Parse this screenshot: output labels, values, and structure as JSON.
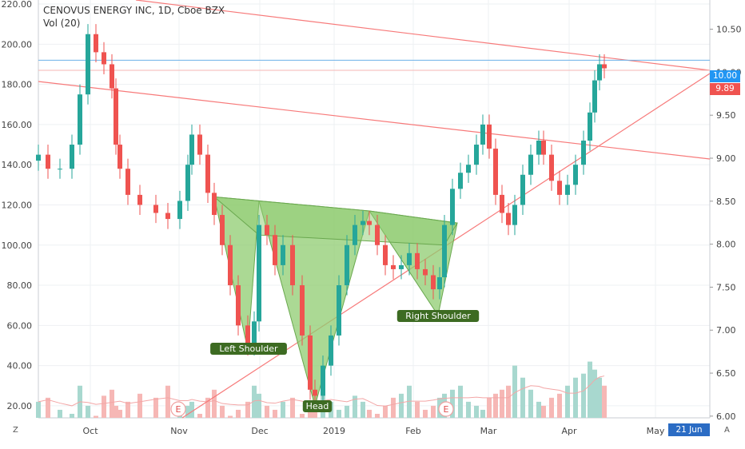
{
  "header": {
    "title": "CENOVUS ENERGY INC, 1D, Cboe BZX",
    "volume_label": "Vol (20)"
  },
  "corner": {
    "left": "Z",
    "right": "A"
  },
  "date_tag": "21 Jun '19",
  "price_tags": {
    "last": "10.00",
    "prev": "9.89"
  },
  "colors": {
    "up": "#26a69a",
    "down": "#ef5350",
    "trend": "#f77a7a",
    "hline": "#6cb0e8",
    "pattern": "#8fcc70",
    "label_bg": "#3d6b22"
  },
  "pattern_labels": {
    "left_shoulder": "Left Shoulder",
    "head": "Head",
    "right_shoulder": "Right Shoulder"
  },
  "event_markers": [
    "E",
    "E"
  ],
  "chart_data": {
    "type": "candlestick",
    "title": "CENOVUS ENERGY INC, 1D, Cboe BZX",
    "x_ticks": [
      "Oct",
      "Nov",
      "Dec",
      "2019",
      "Feb",
      "Mar",
      "Apr",
      "May"
    ],
    "left_axis": {
      "ticks": [
        "220.00",
        "200.00",
        "180.00",
        "160.00",
        "140.00",
        "120.00",
        "100.00",
        "80.00",
        "60.00",
        "40.00",
        "20.00"
      ],
      "ylim": [
        14,
        222
      ]
    },
    "right_axis": {
      "ticks": [
        "10.50",
        "10.00",
        "9.50",
        "9.00",
        "8.50",
        "8.00",
        "7.50",
        "7.00",
        "6.50",
        "6.00"
      ],
      "ylim": [
        5.98,
        10.84
      ]
    },
    "grid": true,
    "path": [
      [
        48,
        145
      ],
      [
        60,
        138
      ],
      [
        75,
        138
      ],
      [
        90,
        150
      ],
      [
        100,
        175
      ],
      [
        110,
        205
      ],
      [
        120,
        196
      ],
      [
        130,
        190
      ],
      [
        140,
        178
      ],
      [
        145,
        150
      ],
      [
        150,
        138
      ],
      [
        160,
        125
      ],
      [
        175,
        120
      ],
      [
        195,
        116
      ],
      [
        210,
        113
      ],
      [
        225,
        122
      ],
      [
        235,
        140
      ],
      [
        240,
        155
      ],
      [
        250,
        145
      ],
      [
        260,
        126
      ],
      [
        268,
        115
      ],
      [
        278,
        100
      ],
      [
        288,
        80
      ],
      [
        298,
        60
      ],
      [
        310,
        50
      ],
      [
        318,
        62
      ],
      [
        324,
        110
      ],
      [
        334,
        105
      ],
      [
        344,
        90
      ],
      [
        354,
        100
      ],
      [
        366,
        80
      ],
      [
        378,
        55
      ],
      [
        388,
        28
      ],
      [
        394,
        25
      ],
      [
        404,
        40
      ],
      [
        414,
        55
      ],
      [
        424,
        80
      ],
      [
        434,
        100
      ],
      [
        444,
        110
      ],
      [
        454,
        112
      ],
      [
        462,
        110
      ],
      [
        472,
        100
      ],
      [
        482,
        90
      ],
      [
        492,
        88
      ],
      [
        502,
        90
      ],
      [
        512,
        96
      ],
      [
        522,
        88
      ],
      [
        532,
        85
      ],
      [
        542,
        78
      ],
      [
        550,
        84
      ],
      [
        556,
        110
      ],
      [
        566,
        128
      ],
      [
        576,
        136
      ],
      [
        586,
        140
      ],
      [
        596,
        150
      ],
      [
        604,
        160
      ],
      [
        612,
        148
      ],
      [
        620,
        125
      ],
      [
        628,
        116
      ],
      [
        636,
        110
      ],
      [
        644,
        120
      ],
      [
        654,
        135
      ],
      [
        664,
        145
      ],
      [
        674,
        152
      ],
      [
        680,
        145
      ],
      [
        690,
        132
      ],
      [
        700,
        125
      ],
      [
        710,
        130
      ],
      [
        720,
        140
      ],
      [
        730,
        152
      ],
      [
        738,
        166
      ],
      [
        744,
        182
      ],
      [
        750,
        190
      ],
      [
        756,
        188
      ]
    ],
    "volume": [
      22,
      24,
      18,
      16,
      30,
      20,
      15,
      25,
      28,
      20,
      18,
      22,
      26,
      24,
      30,
      18,
      20,
      22,
      16,
      24,
      28,
      20,
      15,
      18,
      22,
      30,
      26,
      20,
      18,
      22,
      24,
      16,
      20,
      28,
      30,
      22,
      18,
      20,
      25,
      22,
      18,
      16,
      20,
      24,
      26,
      30,
      22,
      18,
      20,
      24,
      26,
      28,
      30,
      22,
      20,
      18,
      24,
      26,
      28,
      30,
      40,
      34,
      28,
      22,
      20,
      24,
      26,
      30,
      34,
      36,
      42,
      38,
      34,
      30
    ]
  }
}
